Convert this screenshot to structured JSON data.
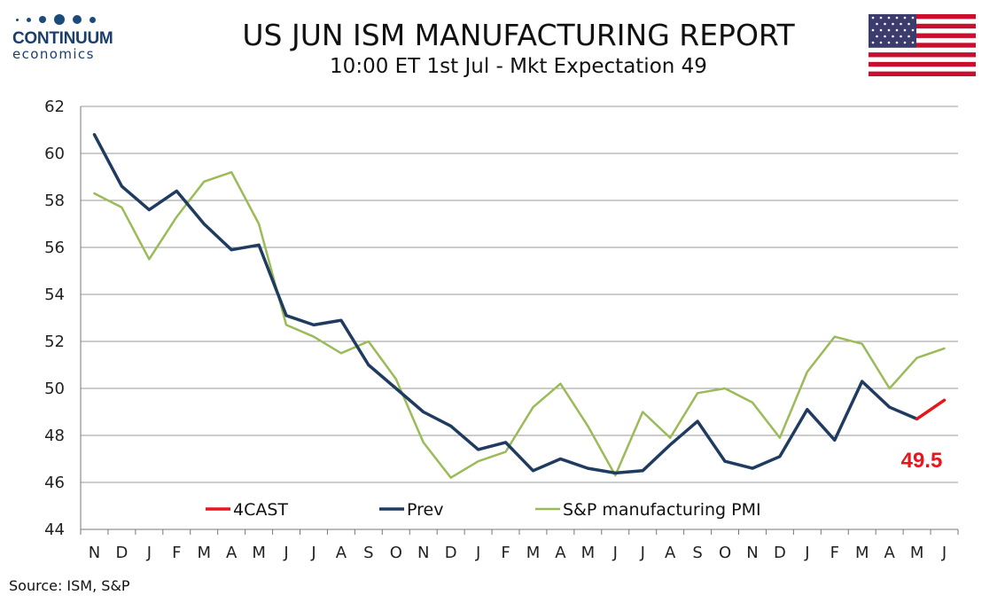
{
  "logo": {
    "name": "CONTINUUM",
    "sub": "economics"
  },
  "header": {
    "title": "US JUN ISM MANUFACTURING REPORT",
    "subtitle": "10:00 ET 1st Jul - Mkt Expectation 49"
  },
  "source": "Source: ISM, S&P",
  "flag": {
    "icon": "us-flag-icon"
  },
  "chart_data": {
    "type": "line",
    "categories": [
      "N",
      "D",
      "J",
      "F",
      "M",
      "A",
      "M",
      "J",
      "J",
      "A",
      "S",
      "O",
      "N",
      "D",
      "J",
      "F",
      "M",
      "A",
      "M",
      "J",
      "J",
      "A",
      "S",
      "O",
      "N",
      "D",
      "J",
      "F",
      "M",
      "A",
      "M",
      "J"
    ],
    "ylim": [
      44,
      62
    ],
    "yticks": [
      44,
      46,
      48,
      50,
      52,
      54,
      56,
      58,
      60,
      62
    ],
    "grid": true,
    "legend_position": "bottom-inside",
    "callout": {
      "text": "49.5",
      "color": "#e8151b"
    },
    "series": [
      {
        "name": "4CAST",
        "color": "#e8151b",
        "values": [
          null,
          null,
          null,
          null,
          null,
          null,
          null,
          null,
          null,
          null,
          null,
          null,
          null,
          null,
          null,
          null,
          null,
          null,
          null,
          null,
          null,
          null,
          null,
          null,
          null,
          null,
          null,
          null,
          null,
          null,
          48.7,
          49.5
        ]
      },
      {
        "name": "Prev",
        "color": "#1f3b60",
        "values": [
          60.8,
          58.6,
          57.6,
          58.4,
          57.0,
          55.9,
          56.1,
          53.1,
          52.7,
          52.9,
          51.0,
          50.0,
          49.0,
          48.4,
          47.4,
          47.7,
          46.5,
          47.0,
          46.6,
          46.4,
          46.5,
          47.6,
          48.6,
          46.9,
          46.6,
          47.1,
          49.1,
          47.8,
          50.3,
          49.2,
          48.7,
          null
        ]
      },
      {
        "name": "S&P manufacturing PMI",
        "color": "#9bbb59",
        "values": [
          58.3,
          57.7,
          55.5,
          57.3,
          58.8,
          59.2,
          57.0,
          52.7,
          52.2,
          51.5,
          52.0,
          50.4,
          47.7,
          46.2,
          46.9,
          47.3,
          49.2,
          50.2,
          48.4,
          46.3,
          49.0,
          47.9,
          49.8,
          50.0,
          49.4,
          47.9,
          50.7,
          52.2,
          51.9,
          50.0,
          51.3,
          51.7
        ]
      }
    ]
  }
}
